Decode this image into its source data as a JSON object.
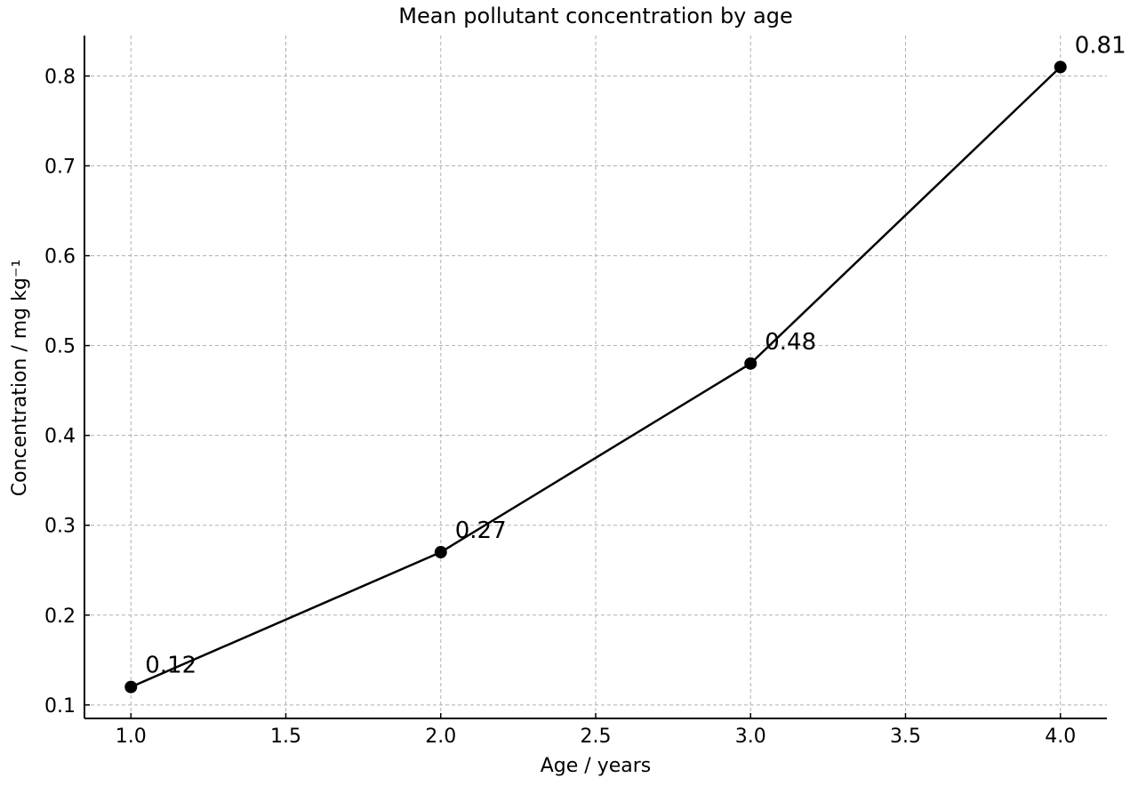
{
  "chart_data": {
    "type": "line",
    "title": "Mean pollutant concentration by age",
    "xlabel": "Age / years",
    "ylabel": "Concentration / mg kg⁻¹",
    "x": [
      1.0,
      2.0,
      3.0,
      4.0
    ],
    "series": [
      {
        "values": [
          0.12,
          0.27,
          0.48,
          0.81
        ],
        "data_labels": [
          "0.12",
          "0.27",
          "0.48",
          "0.81"
        ],
        "color": "#000000",
        "marker": "circle"
      }
    ],
    "xlim": [
      0.85,
      4.15
    ],
    "ylim": [
      0.085,
      0.845
    ],
    "xticks": [
      1.0,
      1.5,
      2.0,
      2.5,
      3.0,
      3.5,
      4.0
    ],
    "xtick_labels": [
      "1.0",
      "1.5",
      "2.0",
      "2.5",
      "3.0",
      "3.5",
      "4.0"
    ],
    "yticks": [
      0.1,
      0.2,
      0.3,
      0.4,
      0.5,
      0.6,
      0.7,
      0.8
    ],
    "ytick_labels": [
      "0.1",
      "0.2",
      "0.3",
      "0.4",
      "0.5",
      "0.6",
      "0.7",
      "0.8"
    ],
    "grid": true,
    "legend": "none"
  }
}
